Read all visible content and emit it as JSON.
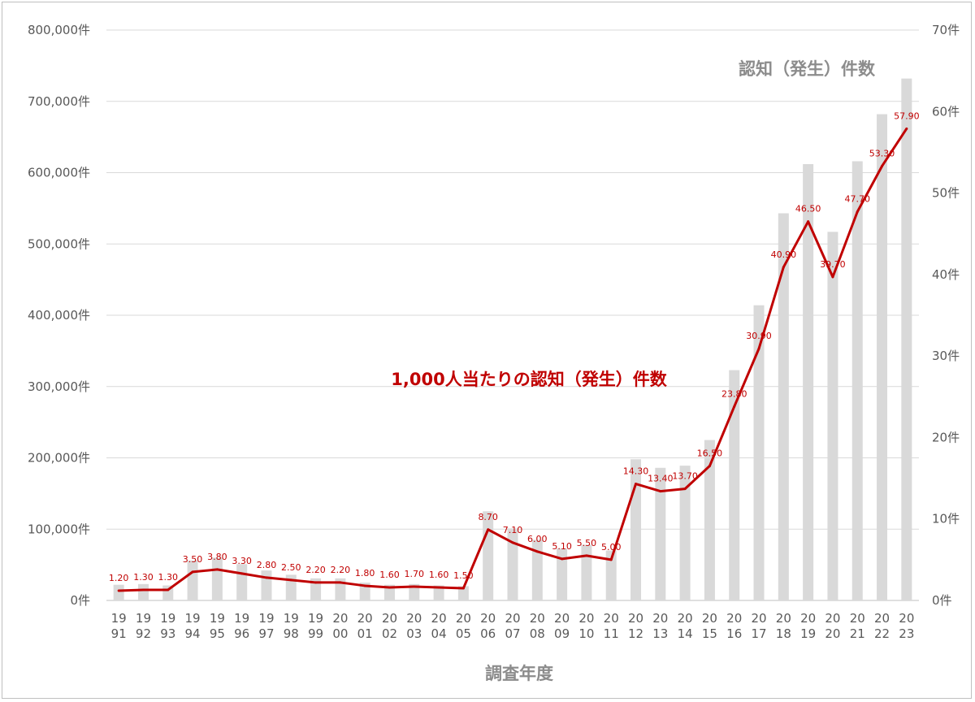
{
  "chart_data": {
    "type": "bar",
    "x_title": "調査年度",
    "categories": [
      "1991",
      "1992",
      "1993",
      "1994",
      "1995",
      "1996",
      "1997",
      "1998",
      "1999",
      "2000",
      "2001",
      "2002",
      "2003",
      "2004",
      "2005",
      "2006",
      "2007",
      "2008",
      "2009",
      "2010",
      "2011",
      "2012",
      "2013",
      "2014",
      "2015",
      "2016",
      "2017",
      "2018",
      "2019",
      "2020",
      "2021",
      "2022",
      "2023"
    ],
    "category_lines": [
      [
        "19",
        "91"
      ],
      [
        "19",
        "92"
      ],
      [
        "19",
        "93"
      ],
      [
        "19",
        "94"
      ],
      [
        "19",
        "95"
      ],
      [
        "19",
        "96"
      ],
      [
        "19",
        "97"
      ],
      [
        "19",
        "98"
      ],
      [
        "19",
        "99"
      ],
      [
        "20",
        "00"
      ],
      [
        "20",
        "01"
      ],
      [
        "20",
        "02"
      ],
      [
        "20",
        "03"
      ],
      [
        "20",
        "04"
      ],
      [
        "20",
        "05"
      ],
      [
        "20",
        "06"
      ],
      [
        "20",
        "07"
      ],
      [
        "20",
        "08"
      ],
      [
        "20",
        "09"
      ],
      [
        "20",
        "10"
      ],
      [
        "20",
        "11"
      ],
      [
        "20",
        "12"
      ],
      [
        "20",
        "13"
      ],
      [
        "20",
        "14"
      ],
      [
        "20",
        "15"
      ],
      [
        "20",
        "16"
      ],
      [
        "20",
        "17"
      ],
      [
        "20",
        "18"
      ],
      [
        "20",
        "19"
      ],
      [
        "20",
        "20"
      ],
      [
        "20",
        "21"
      ],
      [
        "20",
        "22"
      ],
      [
        "20",
        "23"
      ]
    ],
    "series": [
      {
        "name": "認知（発生）件数",
        "type": "bar",
        "axis": "left",
        "color": "#d9d9d9",
        "values": [
          22000,
          23000,
          21000,
          56000,
          60000,
          51000,
          42000,
          36000,
          31000,
          31000,
          25000,
          22000,
          23000,
          21000,
          20000,
          125000,
          101000,
          85000,
          73000,
          78000,
          70000,
          198000,
          186000,
          189000,
          225000,
          323000,
          414000,
          543000,
          612000,
          517000,
          616000,
          682000,
          732000
        ]
      },
      {
        "name": "1,000人当たりの認知（発生）件数",
        "type": "line",
        "axis": "right",
        "color": "#c00000",
        "values": [
          1.2,
          1.3,
          1.3,
          3.5,
          3.8,
          3.3,
          2.8,
          2.5,
          2.2,
          2.2,
          1.8,
          1.6,
          1.7,
          1.6,
          1.5,
          8.7,
          7.1,
          6.0,
          5.1,
          5.5,
          5.0,
          14.3,
          13.4,
          13.7,
          16.5,
          23.8,
          30.9,
          40.9,
          46.5,
          39.7,
          47.7,
          53.3,
          57.9
        ],
        "labels": [
          "1.20",
          "1.30",
          "1.30",
          "3.50",
          "3.80",
          "3.30",
          "2.80",
          "2.50",
          "2.20",
          "2.20",
          "1.80",
          "1.60",
          "1.70",
          "1.60",
          "1.50",
          "8.70",
          "7.10",
          "6.00",
          "5.10",
          "5.50",
          "5.00",
          "14.30",
          "13.40",
          "13.70",
          "16.50",
          "23.80",
          "30.90",
          "40.90",
          "46.50",
          "39.70",
          "47.70",
          "53.30",
          "57.90"
        ]
      }
    ],
    "y_left": {
      "range": [
        0,
        800000
      ],
      "ticks": [
        0,
        100000,
        200000,
        300000,
        400000,
        500000,
        600000,
        700000,
        800000
      ],
      "tick_labels": [
        "0件",
        "100,000件",
        "200,000件",
        "300,000件",
        "400,000件",
        "500,000件",
        "600,000件",
        "700,000件",
        "800,000件"
      ]
    },
    "y_right": {
      "range": [
        0,
        70
      ],
      "ticks": [
        0,
        10,
        20,
        30,
        40,
        50,
        60,
        70
      ],
      "tick_labels": [
        "0件",
        "10件",
        "20件",
        "30件",
        "40件",
        "50件",
        "60件",
        "70件"
      ]
    },
    "grid": true,
    "annotations": {
      "bar_series_title": "認知（発生）件数",
      "line_series_title": "1,000人当たりの認知（発生）件数"
    }
  }
}
